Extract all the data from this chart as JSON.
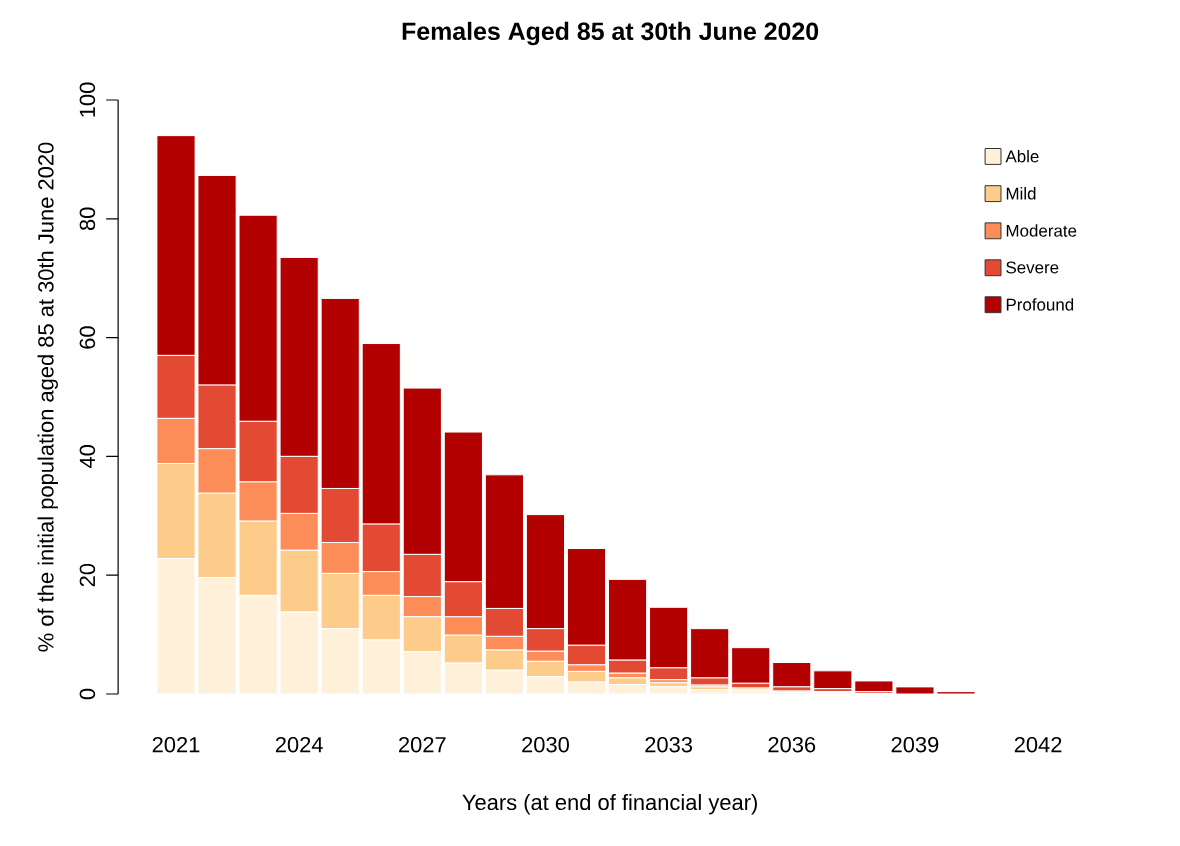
{
  "chart_data": {
    "type": "bar",
    "stacked": true,
    "title": "Females Aged 85 at 30th June 2020",
    "xlabel": "Years (at end of financial year)",
    "ylabel": "% of the initial population aged 85 at 30th June 2020",
    "categories": [
      "2021",
      null,
      null,
      "2024",
      null,
      null,
      "2027",
      null,
      null,
      "2030",
      null,
      null,
      "2033",
      null,
      null,
      "2036",
      null,
      null,
      "2039",
      null,
      null,
      "2042"
    ],
    "series": [
      {
        "name": "Able",
        "color": "#fef0d9",
        "values": [
          22.8,
          19.6,
          16.6,
          13.8,
          11,
          9.1,
          7.1,
          5.2,
          4,
          2.9,
          2,
          1.6,
          1.2,
          0.7,
          0.5,
          0.3,
          0.2,
          0,
          0,
          0,
          null,
          null
        ]
      },
      {
        "name": "Mild",
        "color": "#fdcc8a",
        "values": [
          16,
          14.2,
          12.5,
          10.4,
          9.3,
          7.5,
          5.9,
          4.7,
          3.4,
          2.6,
          1.8,
          1.1,
          0.7,
          0.5,
          0.3,
          0.2,
          0.1,
          null,
          0,
          0,
          null,
          null
        ]
      },
      {
        "name": "Moderate",
        "color": "#fc8d59",
        "values": [
          7.6,
          7.5,
          6.6,
          6.2,
          5.2,
          4,
          3.4,
          3.1,
          2.3,
          1.7,
          1.1,
          0.8,
          0.5,
          0.3,
          0.2,
          null,
          0.1,
          0.1,
          0,
          0,
          null,
          null
        ]
      },
      {
        "name": "Severe",
        "color": "#e34a33",
        "values": [
          10.6,
          10.7,
          10.2,
          9.6,
          9.1,
          8,
          7.1,
          5.9,
          4.7,
          3.8,
          3.3,
          2.2,
          2,
          1.2,
          0.8,
          0.7,
          0.5,
          0.3,
          null,
          0,
          null,
          null
        ]
      },
      {
        "name": "Profound",
        "color": "#b30000",
        "values": [
          37,
          35.3,
          34.7,
          33.5,
          32,
          30.4,
          28,
          25.2,
          22.5,
          19.2,
          16.3,
          13.6,
          10.2,
          8.3,
          6,
          4.1,
          3,
          1.8,
          1.2,
          0.4,
          null,
          null
        ]
      }
    ],
    "ylim": [
      0,
      100
    ],
    "yticks": [
      0,
      20,
      40,
      60,
      80,
      100
    ],
    "legend": "top right"
  }
}
